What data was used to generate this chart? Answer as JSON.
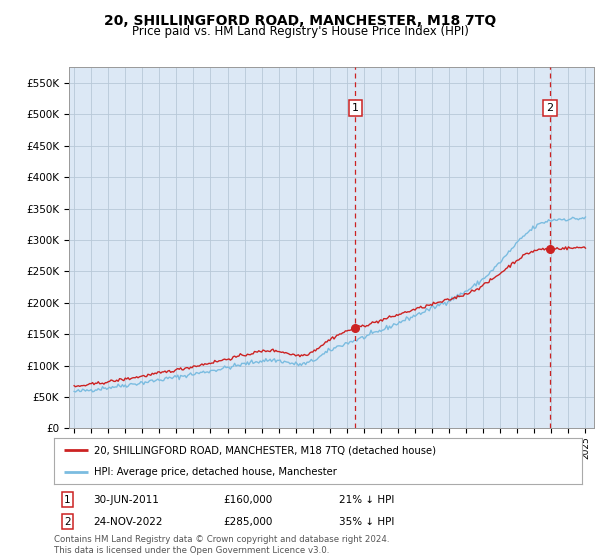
{
  "title": "20, SHILLINGFORD ROAD, MANCHESTER, M18 7TQ",
  "subtitle": "Price paid vs. HM Land Registry's House Price Index (HPI)",
  "hpi_color": "#7bbce0",
  "price_color": "#cc2222",
  "bg_color": "#dce8f5",
  "marker1_year": 2011.5,
  "marker2_year": 2022.92,
  "marker1_price_val": 160000,
  "marker2_price_val": 285000,
  "marker1_date": "30-JUN-2011",
  "marker1_price": "£160,000",
  "marker1_hpi": "21% ↓ HPI",
  "marker2_date": "24-NOV-2022",
  "marker2_price": "£285,000",
  "marker2_hpi": "35% ↓ HPI",
  "legend_line1": "20, SHILLINGFORD ROAD, MANCHESTER, M18 7TQ (detached house)",
  "legend_line2": "HPI: Average price, detached house, Manchester",
  "footnote": "Contains HM Land Registry data © Crown copyright and database right 2024.\nThis data is licensed under the Open Government Licence v3.0.",
  "ylim_max": 575000,
  "xmin": 1994.7,
  "xmax": 2025.5
}
